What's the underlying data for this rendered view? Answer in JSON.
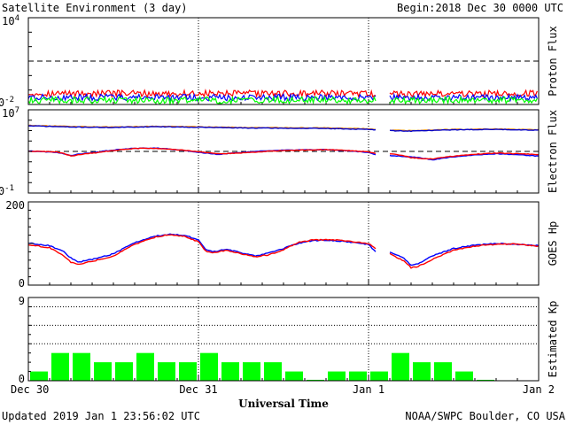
{
  "header": {
    "title": "Satellite Environment (3 day)",
    "begin_label": "Begin:",
    "begin_value": "2018 Dec 30 0000 UTC"
  },
  "footer": {
    "updated": "Updated 2019 Jan  1 23:56:02 UTC",
    "credit": "NOAA/SWPC Boulder, CO USA"
  },
  "chart_data": {
    "type": "line",
    "xlabel": "Universal Time",
    "x_ticks": [
      "Dec 30",
      "Dec 31",
      "Jan 1",
      "Jan 2"
    ],
    "x_range_hours": [
      0,
      72
    ],
    "panels": [
      {
        "name": "proton",
        "ylabel": "Proton Flux",
        "scale": "log",
        "ylim": [
          0.01,
          10000
        ],
        "ytick_labels": [
          "10^-2",
          "10^4"
        ],
        "threshold": 10,
        "gap_hours": [
          49.2,
          51.0
        ],
        "series": [
          {
            "color": "#ff0000",
            "values": [
              0.058,
              0.056,
              0.057,
              0.055,
              0.056
            ]
          },
          {
            "color": "#0000ff",
            "values": [
              0.031,
              0.03,
              0.031,
              0.029,
              0.03
            ]
          },
          {
            "color": "#00ff00",
            "values": [
              0.02,
              0.019,
              0.02,
              0.019,
              0.02
            ]
          }
        ]
      },
      {
        "name": "electron",
        "ylabel": "Electron Flux",
        "scale": "log",
        "ylim": [
          0.1,
          10000000
        ],
        "ytick_labels": [
          "10^-1",
          "10^7"
        ],
        "threshold": 1000,
        "gap_hours": [
          49.2,
          51.0
        ],
        "series": [
          {
            "color": "#ff8c00",
            "points": [
              [
                0,
                320000.0
              ],
              [
                6,
                250000.0
              ],
              [
                12,
                220000.0
              ],
              [
                18,
                260000.0
              ],
              [
                24,
                230000.0
              ],
              [
                30,
                200000.0
              ],
              [
                36,
                190000.0
              ],
              [
                42,
                180000.0
              ],
              [
                48,
                150000.0
              ],
              [
                51,
                110000.0
              ],
              [
                54,
                100000.0
              ],
              [
                60,
                130000.0
              ],
              [
                66,
                140000.0
              ],
              [
                72,
                120000.0
              ]
            ]
          },
          {
            "color": "#0000cc",
            "points": [
              [
                0,
                290000.0
              ],
              [
                6,
                220000.0
              ],
              [
                12,
                200000.0
              ],
              [
                18,
                240000.0
              ],
              [
                24,
                210000.0
              ],
              [
                30,
                180000.0
              ],
              [
                36,
                170000.0
              ],
              [
                42,
                160000.0
              ],
              [
                48,
                130000.0
              ],
              [
                51,
                100000.0
              ],
              [
                54,
                90000.0
              ],
              [
                60,
                120000.0
              ],
              [
                66,
                130000.0
              ],
              [
                72,
                110000.0
              ]
            ]
          },
          {
            "color": "#0000ff",
            "points": [
              [
                0,
                1100
              ],
              [
                4,
                800
              ],
              [
                6,
                400
              ],
              [
                10,
                900
              ],
              [
                15,
                2000
              ],
              [
                18,
                2100
              ],
              [
                24,
                800
              ],
              [
                27,
                500
              ],
              [
                30,
                800
              ],
              [
                36,
                1300
              ],
              [
                42,
                1500
              ],
              [
                48,
                800
              ],
              [
                49,
                500
              ],
              [
                51,
                400
              ],
              [
                54,
                300
              ],
              [
                57,
                150
              ],
              [
                60,
                300
              ],
              [
                66,
                600
              ],
              [
                72,
                350
              ]
            ]
          },
          {
            "color": "#ff0000",
            "points": [
              [
                0,
                1050
              ],
              [
                4,
                900
              ],
              [
                6,
                350
              ],
              [
                10,
                800
              ],
              [
                15,
                1900
              ],
              [
                18,
                2000
              ],
              [
                24,
                900
              ],
              [
                27,
                600
              ],
              [
                30,
                700
              ],
              [
                36,
                1200
              ],
              [
                42,
                1500
              ],
              [
                48,
                900
              ],
              [
                49,
                600
              ],
              [
                51,
                600
              ],
              [
                54,
                250
              ],
              [
                57,
                180
              ],
              [
                60,
                350
              ],
              [
                66,
                700
              ],
              [
                72,
                500
              ]
            ]
          }
        ]
      },
      {
        "name": "hp",
        "ylabel": "GOES Hp",
        "scale": "linear",
        "ylim": [
          0,
          200
        ],
        "ytick_labels": [
          "0",
          "200"
        ],
        "gap_hours": [
          49.2,
          51.0
        ],
        "series": [
          {
            "color": "#0000ff",
            "points": [
              [
                0,
                101
              ],
              [
                3,
                95
              ],
              [
                5,
                80
              ],
              [
                6,
                65
              ],
              [
                7,
                55
              ],
              [
                9,
                62
              ],
              [
                12,
                75
              ],
              [
                15,
                102
              ],
              [
                18,
                118
              ],
              [
                20,
                122
              ],
              [
                22,
                120
              ],
              [
                24,
                108
              ],
              [
                25,
                85
              ],
              [
                26,
                80
              ],
              [
                28,
                86
              ],
              [
                30,
                78
              ],
              [
                32,
                70
              ],
              [
                34,
                78
              ],
              [
                36,
                88
              ],
              [
                38,
                100
              ],
              [
                40,
                107
              ],
              [
                42,
                108
              ],
              [
                44,
                106
              ],
              [
                46,
                102
              ],
              [
                48,
                98
              ],
              [
                49,
                80
              ],
              [
                51,
                80
              ],
              [
                53,
                65
              ],
              [
                54,
                48
              ],
              [
                55,
                52
              ],
              [
                57,
                70
              ],
              [
                60,
                88
              ],
              [
                63,
                96
              ],
              [
                66,
                100
              ],
              [
                69,
                98
              ],
              [
                72,
                95
              ]
            ]
          },
          {
            "color": "#ff0000",
            "points": [
              [
                0,
                97
              ],
              [
                3,
                90
              ],
              [
                5,
                70
              ],
              [
                6,
                55
              ],
              [
                7,
                50
              ],
              [
                9,
                57
              ],
              [
                12,
                70
              ],
              [
                15,
                98
              ],
              [
                18,
                116
              ],
              [
                20,
                121
              ],
              [
                22,
                118
              ],
              [
                24,
                104
              ],
              [
                25,
                82
              ],
              [
                26,
                78
              ],
              [
                28,
                84
              ],
              [
                30,
                75
              ],
              [
                32,
                68
              ],
              [
                34,
                73
              ],
              [
                36,
                85
              ],
              [
                38,
                102
              ],
              [
                40,
                108
              ],
              [
                42,
                109
              ],
              [
                44,
                108
              ],
              [
                46,
                104
              ],
              [
                48,
                100
              ],
              [
                49,
                88
              ],
              [
                51,
                75
              ],
              [
                53,
                58
              ],
              [
                54,
                42
              ],
              [
                55,
                45
              ],
              [
                57,
                62
              ],
              [
                60,
                84
              ],
              [
                63,
                94
              ],
              [
                66,
                98
              ],
              [
                69,
                99
              ],
              [
                72,
                93
              ]
            ]
          }
        ]
      },
      {
        "name": "kp",
        "ylabel": "Estimated Kp",
        "type": "bar",
        "ylim": [
          0,
          9
        ],
        "ytick_labels": [
          "0",
          "9"
        ],
        "grid_levels": [
          4,
          6,
          8
        ],
        "bar_color": "#00ff00",
        "values": [
          1,
          3,
          3,
          2,
          2,
          3,
          2,
          2,
          3,
          2,
          2,
          2,
          1,
          0.1,
          1,
          1,
          1,
          3,
          2,
          2,
          1,
          0.1,
          0,
          0
        ]
      }
    ]
  }
}
